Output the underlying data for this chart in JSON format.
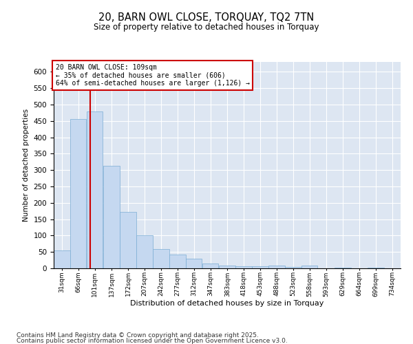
{
  "title": "20, BARN OWL CLOSE, TORQUAY, TQ2 7TN",
  "subtitle": "Size of property relative to detached houses in Torquay",
  "xlabel": "Distribution of detached houses by size in Torquay",
  "ylabel": "Number of detached properties",
  "footnote1": "Contains HM Land Registry data © Crown copyright and database right 2025.",
  "footnote2": "Contains public sector information licensed under the Open Government Licence v3.0.",
  "annotation_title": "20 BARN OWL CLOSE: 109sqm",
  "annotation_line1": "← 35% of detached houses are smaller (606)",
  "annotation_line2": "64% of semi-detached houses are larger (1,126) →",
  "subject_value": 109,
  "bar_color": "#c5d8f0",
  "bar_edge_color": "#7aadd4",
  "ref_line_color": "#cc0000",
  "annotation_box_color": "#cc0000",
  "bg_color": "#dde6f2",
  "categories": [
    "31sqm",
    "66sqm",
    "101sqm",
    "137sqm",
    "172sqm",
    "207sqm",
    "242sqm",
    "277sqm",
    "312sqm",
    "347sqm",
    "383sqm",
    "418sqm",
    "453sqm",
    "488sqm",
    "523sqm",
    "558sqm",
    "593sqm",
    "629sqm",
    "664sqm",
    "699sqm",
    "734sqm"
  ],
  "bin_edges": [
    31,
    66,
    101,
    137,
    172,
    207,
    242,
    277,
    312,
    347,
    383,
    418,
    453,
    488,
    523,
    558,
    593,
    629,
    664,
    699,
    734
  ],
  "values": [
    55,
    455,
    478,
    312,
    173,
    100,
    59,
    42,
    30,
    14,
    8,
    7,
    7,
    8,
    5,
    8,
    0,
    2,
    0,
    3
  ],
  "ylim": [
    0,
    630
  ],
  "yticks": [
    0,
    50,
    100,
    150,
    200,
    250,
    300,
    350,
    400,
    450,
    500,
    550,
    600
  ]
}
